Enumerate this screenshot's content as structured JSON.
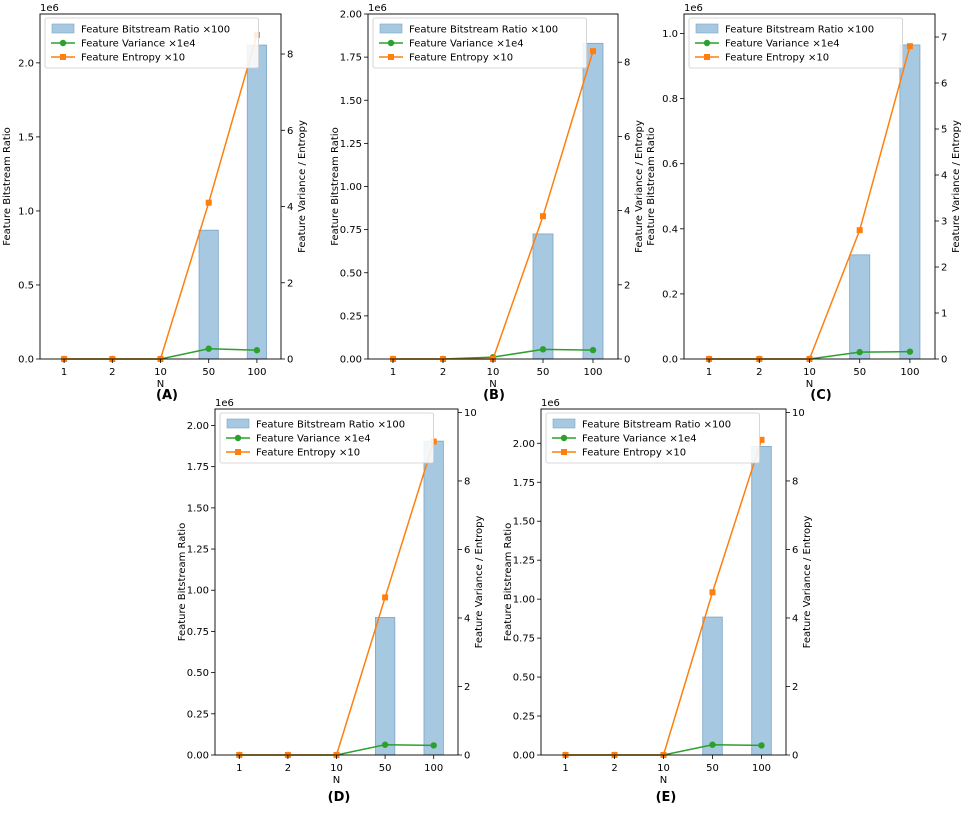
{
  "chart_data": [
    {
      "type": "bar+line",
      "panel_label": "(A)",
      "categories": [
        "1",
        "2",
        "10",
        "50",
        "100"
      ],
      "xlabel": "N",
      "ylabel": "Feature Bitstream Ratio",
      "y2label": "Feature Variance / Entropy",
      "ylim": [
        0,
        2.33
      ],
      "y_ticks": [
        0.0,
        0.5,
        1.0,
        1.5,
        2.0
      ],
      "y_multiplier": "1e6",
      "y2lim": [
        0,
        9.05
      ],
      "y2_ticks": [
        0,
        2,
        4,
        6,
        8
      ],
      "legend_position": "upper left",
      "series": [
        {
          "name": "Feature Bitstream Ratio ×100",
          "kind": "bar",
          "axis": "left",
          "color": "#a6c8e0",
          "values": [
            0,
            0,
            0,
            0.87,
            2.12
          ]
        },
        {
          "name": "Feature Variance ×1e4",
          "kind": "line",
          "axis": "right",
          "marker": "circle",
          "color": "#2ca02c",
          "values": [
            0,
            0,
            0,
            0.27,
            0.23
          ]
        },
        {
          "name": "Feature Entropy ×10",
          "kind": "line",
          "axis": "right",
          "marker": "square",
          "color": "#ff7f0e",
          "values": [
            0,
            0,
            0,
            4.1,
            8.5
          ]
        }
      ]
    },
    {
      "type": "bar+line",
      "panel_label": "(B)",
      "categories": [
        "1",
        "2",
        "10",
        "50",
        "100"
      ],
      "xlabel": "N",
      "ylabel": "Feature Bitstream Ratio",
      "y2label": "Feature Variance / Entropy",
      "ylim": [
        0,
        2.0
      ],
      "y_ticks": [
        0.0,
        0.25,
        0.5,
        0.75,
        1.0,
        1.25,
        1.5,
        1.75,
        2.0
      ],
      "y_multiplier": "1e6",
      "y2lim": [
        0,
        9.3
      ],
      "y2_ticks": [
        0,
        2,
        4,
        6,
        8
      ],
      "legend_position": "upper left",
      "series": [
        {
          "name": "Feature Bitstream Ratio ×100",
          "kind": "bar",
          "axis": "left",
          "color": "#a6c8e0",
          "values": [
            0,
            0,
            0,
            0.725,
            1.83
          ]
        },
        {
          "name": "Feature Variance ×1e4",
          "kind": "line",
          "axis": "right",
          "marker": "circle",
          "color": "#2ca02c",
          "values": [
            0,
            0,
            0.05,
            0.26,
            0.24
          ]
        },
        {
          "name": "Feature Entropy ×10",
          "kind": "line",
          "axis": "right",
          "marker": "square",
          "color": "#ff7f0e",
          "values": [
            0,
            0,
            0,
            3.85,
            8.3
          ]
        }
      ]
    },
    {
      "type": "bar+line",
      "panel_label": "(C)",
      "categories": [
        "1",
        "2",
        "10",
        "50",
        "100"
      ],
      "xlabel": "N",
      "ylabel": "Feature Bitstream Ratio",
      "y2label": "Feature Variance / Entropy",
      "ylim": [
        0,
        1.06
      ],
      "y_ticks": [
        0.0,
        0.2,
        0.4,
        0.6,
        0.8,
        1.0
      ],
      "y_multiplier": "1e6",
      "y2lim": [
        0,
        7.5
      ],
      "y2_ticks": [
        0,
        1,
        2,
        3,
        4,
        5,
        6,
        7
      ],
      "legend_position": "upper left",
      "series": [
        {
          "name": "Feature Bitstream Ratio ×100",
          "kind": "bar",
          "axis": "left",
          "color": "#a6c8e0",
          "values": [
            0,
            0,
            0,
            0.32,
            0.965
          ]
        },
        {
          "name": "Feature Variance ×1e4",
          "kind": "line",
          "axis": "right",
          "marker": "circle",
          "color": "#2ca02c",
          "values": [
            0,
            0,
            0,
            0.15,
            0.16
          ]
        },
        {
          "name": "Feature Entropy ×10",
          "kind": "line",
          "axis": "right",
          "marker": "square",
          "color": "#ff7f0e",
          "values": [
            0,
            0,
            0,
            2.8,
            6.8
          ]
        }
      ]
    },
    {
      "type": "bar+line",
      "panel_label": "(D)",
      "categories": [
        "1",
        "2",
        "10",
        "50",
        "100"
      ],
      "xlabel": "N",
      "ylabel": "Feature Bitstream Ratio",
      "y2label": "Feature Variance / Entropy",
      "ylim": [
        0,
        2.1
      ],
      "y_ticks": [
        0.0,
        0.25,
        0.5,
        0.75,
        1.0,
        1.25,
        1.5,
        1.75,
        2.0
      ],
      "y_multiplier": "1e6",
      "y2lim": [
        0,
        10.1
      ],
      "y2_ticks": [
        0,
        2,
        4,
        6,
        8,
        10
      ],
      "legend_position": "upper left",
      "series": [
        {
          "name": "Feature Bitstream Ratio ×100",
          "kind": "bar",
          "axis": "left",
          "color": "#a6c8e0",
          "values": [
            0,
            0,
            0,
            0.835,
            1.905
          ]
        },
        {
          "name": "Feature Variance ×1e4",
          "kind": "line",
          "axis": "right",
          "marker": "circle",
          "color": "#2ca02c",
          "values": [
            0,
            0,
            0,
            0.3,
            0.28
          ]
        },
        {
          "name": "Feature Entropy ×10",
          "kind": "line",
          "axis": "right",
          "marker": "square",
          "color": "#ff7f0e",
          "values": [
            0,
            0,
            0,
            4.6,
            9.15
          ]
        }
      ]
    },
    {
      "type": "bar+line",
      "panel_label": "(E)",
      "categories": [
        "1",
        "2",
        "10",
        "50",
        "100"
      ],
      "xlabel": "N",
      "ylabel": "Feature Bitstream Ratio",
      "y2label": "Feature Variance / Entropy",
      "ylim": [
        0,
        2.22
      ],
      "y_ticks": [
        0.0,
        0.25,
        0.5,
        0.75,
        1.0,
        1.25,
        1.5,
        1.75,
        2.0
      ],
      "y_multiplier": "1e6",
      "y2lim": [
        0,
        10.1
      ],
      "y2_ticks": [
        0,
        2,
        4,
        6,
        8,
        10
      ],
      "legend_position": "upper left",
      "series": [
        {
          "name": "Feature Bitstream Ratio ×100",
          "kind": "bar",
          "axis": "left",
          "color": "#a6c8e0",
          "values": [
            0,
            0,
            0,
            0.885,
            1.98
          ]
        },
        {
          "name": "Feature Variance ×1e4",
          "kind": "line",
          "axis": "right",
          "marker": "circle",
          "color": "#2ca02c",
          "values": [
            0,
            0,
            0,
            0.3,
            0.28
          ]
        },
        {
          "name": "Feature Entropy ×10",
          "kind": "line",
          "axis": "right",
          "marker": "square",
          "color": "#ff7f0e",
          "values": [
            0,
            0,
            0,
            4.75,
            9.2
          ]
        }
      ]
    }
  ]
}
